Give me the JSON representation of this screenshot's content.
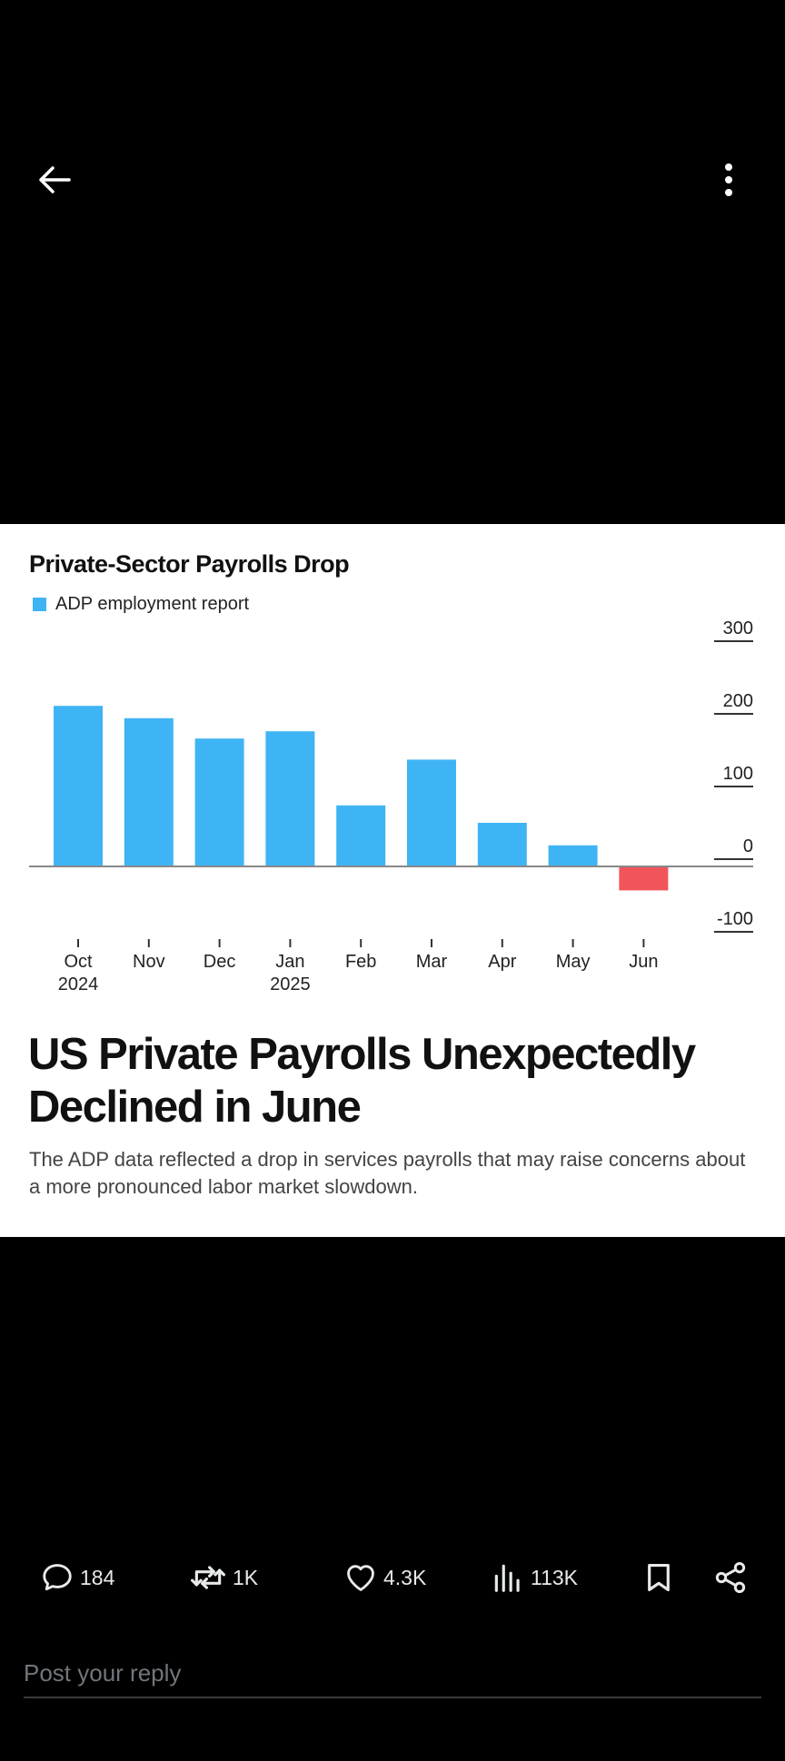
{
  "image_card": {
    "legend_color": "#3fb4f4",
    "negative_color": "#f2545b",
    "headline": "US Private Payrolls Unexpectedly Declined in June",
    "dek": "The ADP data reflected a drop in services payrolls that may raise concerns about a more pronounced labor market slowdown."
  },
  "chart_data": {
    "type": "bar",
    "title": "Private-Sector Payrolls Drop",
    "series": [
      {
        "name": "ADP employment report",
        "values": [
          221,
          204,
          176,
          186,
          84,
          147,
          60,
          29,
          -33
        ]
      }
    ],
    "categories": [
      "Oct",
      "Nov",
      "Dec",
      "Jan",
      "Feb",
      "Mar",
      "Apr",
      "May",
      "Jun"
    ],
    "category_sublabels": [
      "2024",
      "",
      "",
      "2025",
      "",
      "",
      "",
      "",
      ""
    ],
    "ylim": [
      -100,
      300
    ],
    "yticks": [
      300,
      200,
      100,
      0,
      -100
    ],
    "ytick_labels": [
      "300",
      "200",
      "100",
      "0",
      "-100"
    ],
    "y_axis_side": "right",
    "grid": false,
    "legend_placement": "top-left",
    "xlabel": "",
    "ylabel": ""
  },
  "actions": {
    "replies": "184",
    "reposts": "1K",
    "likes": "4.3K",
    "views": "113K"
  },
  "reply": {
    "placeholder": "Post your reply"
  }
}
